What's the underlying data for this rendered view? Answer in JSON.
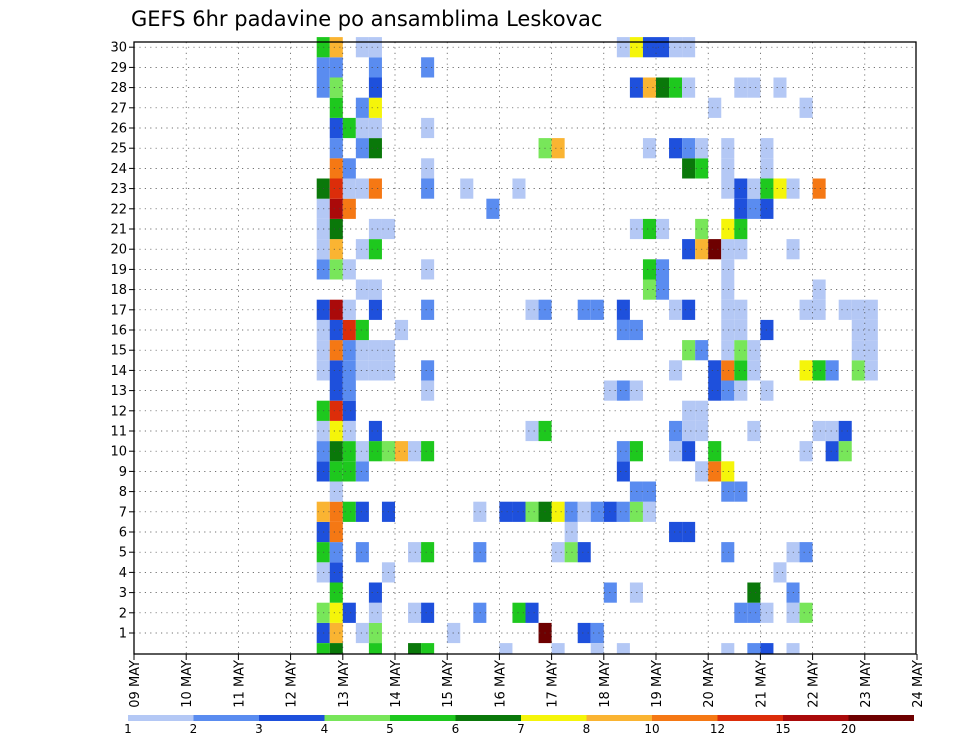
{
  "chart_data": {
    "type": "heatmap",
    "title": "GEFS 6hr padavine po ansamblima Leskovac",
    "x_ticks": [
      "09 MAY",
      "10 MAY",
      "11 MAY",
      "12 MAY",
      "13 MAY",
      "14 MAY",
      "15 MAY",
      "16 MAY",
      "17 MAY",
      "18 MAY",
      "19 MAY",
      "20 MAY",
      "21 MAY",
      "22 MAY",
      "23 MAY",
      "24 MAY"
    ],
    "y_ticks": [
      "1",
      "2",
      "3",
      "4",
      "5",
      "6",
      "7",
      "8",
      "9",
      "10",
      "11",
      "12",
      "13",
      "14",
      "15",
      "16",
      "17",
      "18",
      "19",
      "20",
      "21",
      "22",
      "23",
      "24",
      "25",
      "26",
      "27",
      "28",
      "29",
      "30"
    ],
    "xlim": [
      "09 MAY",
      "24 MAY"
    ],
    "ylim": [
      0.5,
      30.5
    ],
    "grid": true,
    "colorbar": {
      "labels": [
        "1",
        "2",
        "3",
        "4",
        "5",
        "6",
        "7",
        "8",
        "10",
        "12",
        "15",
        "20"
      ],
      "colors": [
        "#b4c8f5",
        "#5a8cf0",
        "#1e50dc",
        "#78e65a",
        "#1ec81e",
        "#0a780a",
        "#f5f50a",
        "#fab432",
        "#f57814",
        "#dc2d0a",
        "#aa0a0a",
        "#6e0000"
      ]
    },
    "cells_note": "each cell = [ensemble member, 6-hour step from 09 MAY 00Z, color class index 1-12]",
    "cells": [
      [
        1,
        14,
        3
      ],
      [
        1,
        15,
        8
      ],
      [
        1,
        17,
        1
      ],
      [
        1,
        18,
        4
      ],
      [
        1,
        24,
        1
      ],
      [
        1,
        31,
        12
      ],
      [
        1,
        34,
        3
      ],
      [
        1,
        35,
        2
      ],
      [
        2,
        14,
        4
      ],
      [
        2,
        15,
        7
      ],
      [
        2,
        16,
        3
      ],
      [
        2,
        18,
        1
      ],
      [
        2,
        21,
        1
      ],
      [
        2,
        22,
        3
      ],
      [
        2,
        26,
        2
      ],
      [
        2,
        29,
        5
      ],
      [
        2,
        30,
        3
      ],
      [
        2,
        46,
        2
      ],
      [
        2,
        47,
        2
      ],
      [
        2,
        48,
        1
      ],
      [
        2,
        50,
        1
      ],
      [
        2,
        51,
        4
      ],
      [
        3,
        15,
        5
      ],
      [
        3,
        18,
        3
      ],
      [
        3,
        36,
        2
      ],
      [
        3,
        38,
        1
      ],
      [
        3,
        47,
        6
      ],
      [
        3,
        50,
        2
      ],
      [
        4,
        14,
        1
      ],
      [
        4,
        15,
        3
      ],
      [
        4,
        19,
        1
      ],
      [
        4,
        49,
        1
      ],
      [
        5,
        14,
        5
      ],
      [
        5,
        15,
        2
      ],
      [
        5,
        17,
        2
      ],
      [
        5,
        21,
        1
      ],
      [
        5,
        22,
        5
      ],
      [
        5,
        26,
        2
      ],
      [
        5,
        32,
        1
      ],
      [
        5,
        33,
        4
      ],
      [
        5,
        34,
        3
      ],
      [
        5,
        45,
        2
      ],
      [
        5,
        50,
        1
      ],
      [
        5,
        51,
        2
      ],
      [
        6,
        14,
        3
      ],
      [
        6,
        15,
        9
      ],
      [
        6,
        33,
        1
      ],
      [
        6,
        41,
        3
      ],
      [
        6,
        42,
        3
      ],
      [
        7,
        14,
        8
      ],
      [
        7,
        15,
        9
      ],
      [
        7,
        16,
        5
      ],
      [
        7,
        17,
        3
      ],
      [
        7,
        19,
        3
      ],
      [
        7,
        26,
        1
      ],
      [
        7,
        28,
        3
      ],
      [
        7,
        29,
        3
      ],
      [
        7,
        30,
        4
      ],
      [
        7,
        31,
        6
      ],
      [
        7,
        32,
        7
      ],
      [
        7,
        33,
        2
      ],
      [
        7,
        34,
        1
      ],
      [
        7,
        35,
        2
      ],
      [
        7,
        36,
        3
      ],
      [
        7,
        37,
        2
      ],
      [
        7,
        38,
        4
      ],
      [
        7,
        39,
        1
      ],
      [
        8,
        15,
        1
      ],
      [
        8,
        38,
        2
      ],
      [
        8,
        39,
        2
      ],
      [
        8,
        45,
        2
      ],
      [
        8,
        46,
        2
      ],
      [
        9,
        14,
        3
      ],
      [
        9,
        15,
        5
      ],
      [
        9,
        16,
        5
      ],
      [
        9,
        17,
        2
      ],
      [
        9,
        37,
        3
      ],
      [
        9,
        43,
        1
      ],
      [
        9,
        44,
        9
      ],
      [
        9,
        45,
        7
      ],
      [
        10,
        14,
        2
      ],
      [
        10,
        15,
        6
      ],
      [
        10,
        16,
        5
      ],
      [
        10,
        17,
        1
      ],
      [
        10,
        18,
        5
      ],
      [
        10,
        19,
        4
      ],
      [
        10,
        20,
        8
      ],
      [
        10,
        21,
        1
      ],
      [
        10,
        22,
        5
      ],
      [
        10,
        37,
        2
      ],
      [
        10,
        38,
        5
      ],
      [
        10,
        41,
        1
      ],
      [
        10,
        42,
        3
      ],
      [
        10,
        44,
        5
      ],
      [
        10,
        51,
        1
      ],
      [
        10,
        53,
        3
      ],
      [
        10,
        54,
        4
      ],
      [
        11,
        14,
        1
      ],
      [
        11,
        15,
        7
      ],
      [
        11,
        16,
        1
      ],
      [
        11,
        18,
        3
      ],
      [
        11,
        30,
        1
      ],
      [
        11,
        31,
        5
      ],
      [
        11,
        41,
        2
      ],
      [
        11,
        42,
        1
      ],
      [
        11,
        43,
        1
      ],
      [
        11,
        47,
        1
      ],
      [
        11,
        52,
        1
      ],
      [
        11,
        53,
        1
      ],
      [
        11,
        54,
        3
      ],
      [
        12,
        14,
        5
      ],
      [
        12,
        15,
        10
      ],
      [
        12,
        16,
        3
      ],
      [
        12,
        42,
        1
      ],
      [
        12,
        43,
        1
      ],
      [
        13,
        15,
        3
      ],
      [
        13,
        16,
        2
      ],
      [
        13,
        22,
        1
      ],
      [
        13,
        36,
        1
      ],
      [
        13,
        37,
        2
      ],
      [
        13,
        38,
        1
      ],
      [
        13,
        44,
        3
      ],
      [
        13,
        45,
        2
      ],
      [
        13,
        46,
        1
      ],
      [
        13,
        48,
        1
      ],
      [
        14,
        14,
        1
      ],
      [
        14,
        15,
        3
      ],
      [
        14,
        16,
        2
      ],
      [
        14,
        17,
        1
      ],
      [
        14,
        18,
        1
      ],
      [
        14,
        19,
        1
      ],
      [
        14,
        22,
        2
      ],
      [
        14,
        41,
        1
      ],
      [
        14,
        44,
        3
      ],
      [
        14,
        45,
        9
      ],
      [
        14,
        46,
        5
      ],
      [
        14,
        47,
        1
      ],
      [
        14,
        51,
        7
      ],
      [
        14,
        52,
        5
      ],
      [
        14,
        53,
        2
      ],
      [
        14,
        55,
        4
      ],
      [
        14,
        56,
        1
      ],
      [
        15,
        14,
        1
      ],
      [
        15,
        15,
        9
      ],
      [
        15,
        16,
        2
      ],
      [
        15,
        17,
        1
      ],
      [
        15,
        18,
        1
      ],
      [
        15,
        19,
        1
      ],
      [
        15,
        42,
        4
      ],
      [
        15,
        43,
        2
      ],
      [
        15,
        45,
        1
      ],
      [
        15,
        46,
        4
      ],
      [
        15,
        47,
        1
      ],
      [
        15,
        55,
        1
      ],
      [
        15,
        56,
        1
      ],
      [
        16,
        14,
        1
      ],
      [
        16,
        15,
        3
      ],
      [
        16,
        16,
        10
      ],
      [
        16,
        17,
        5
      ],
      [
        16,
        20,
        1
      ],
      [
        16,
        37,
        2
      ],
      [
        16,
        38,
        2
      ],
      [
        16,
        45,
        1
      ],
      [
        16,
        46,
        1
      ],
      [
        16,
        48,
        3
      ],
      [
        16,
        55,
        1
      ],
      [
        16,
        56,
        1
      ],
      [
        17,
        14,
        3
      ],
      [
        17,
        15,
        11
      ],
      [
        17,
        16,
        1
      ],
      [
        17,
        18,
        3
      ],
      [
        17,
        22,
        2
      ],
      [
        17,
        30,
        1
      ],
      [
        17,
        31,
        2
      ],
      [
        17,
        34,
        2
      ],
      [
        17,
        35,
        2
      ],
      [
        17,
        37,
        3
      ],
      [
        17,
        41,
        1
      ],
      [
        17,
        42,
        3
      ],
      [
        17,
        45,
        1
      ],
      [
        17,
        46,
        1
      ],
      [
        17,
        51,
        1
      ],
      [
        17,
        52,
        1
      ],
      [
        17,
        54,
        1
      ],
      [
        17,
        55,
        1
      ],
      [
        17,
        56,
        1
      ],
      [
        18,
        17,
        1
      ],
      [
        18,
        18,
        1
      ],
      [
        18,
        39,
        4
      ],
      [
        18,
        40,
        2
      ],
      [
        18,
        45,
        1
      ],
      [
        18,
        52,
        1
      ],
      [
        19,
        14,
        2
      ],
      [
        19,
        15,
        4
      ],
      [
        19,
        16,
        1
      ],
      [
        19,
        22,
        1
      ],
      [
        19,
        39,
        5
      ],
      [
        19,
        40,
        2
      ],
      [
        19,
        45,
        1
      ],
      [
        20,
        14,
        1
      ],
      [
        20,
        15,
        8
      ],
      [
        20,
        17,
        1
      ],
      [
        20,
        18,
        5
      ],
      [
        20,
        42,
        3
      ],
      [
        20,
        43,
        8
      ],
      [
        20,
        44,
        12
      ],
      [
        20,
        45,
        1
      ],
      [
        20,
        46,
        1
      ],
      [
        20,
        50,
        1
      ],
      [
        21,
        14,
        1
      ],
      [
        21,
        15,
        6
      ],
      [
        21,
        18,
        1
      ],
      [
        21,
        19,
        1
      ],
      [
        21,
        38,
        1
      ],
      [
        21,
        39,
        5
      ],
      [
        21,
        40,
        1
      ],
      [
        21,
        43,
        4
      ],
      [
        21,
        45,
        7
      ],
      [
        21,
        46,
        5
      ],
      [
        22,
        14,
        1
      ],
      [
        22,
        15,
        11
      ],
      [
        22,
        16,
        9
      ],
      [
        22,
        27,
        2
      ],
      [
        22,
        46,
        3
      ],
      [
        22,
        47,
        2
      ],
      [
        22,
        48,
        3
      ],
      [
        23,
        14,
        6
      ],
      [
        23,
        15,
        10
      ],
      [
        23,
        16,
        1
      ],
      [
        23,
        17,
        1
      ],
      [
        23,
        18,
        9
      ],
      [
        23,
        22,
        2
      ],
      [
        23,
        25,
        1
      ],
      [
        23,
        29,
        1
      ],
      [
        23,
        45,
        1
      ],
      [
        23,
        46,
        3
      ],
      [
        23,
        47,
        1
      ],
      [
        23,
        48,
        5
      ],
      [
        23,
        49,
        7
      ],
      [
        23,
        50,
        1
      ],
      [
        23,
        52,
        9
      ],
      [
        24,
        15,
        9
      ],
      [
        24,
        16,
        2
      ],
      [
        24,
        22,
        1
      ],
      [
        24,
        42,
        6
      ],
      [
        24,
        43,
        5
      ],
      [
        24,
        45,
        1
      ],
      [
        24,
        48,
        1
      ],
      [
        25,
        15,
        2
      ],
      [
        25,
        17,
        2
      ],
      [
        25,
        18,
        6
      ],
      [
        25,
        31,
        4
      ],
      [
        25,
        32,
        8
      ],
      [
        25,
        39,
        1
      ],
      [
        25,
        41,
        3
      ],
      [
        25,
        42,
        2
      ],
      [
        25,
        43,
        1
      ],
      [
        25,
        45,
        1
      ],
      [
        25,
        48,
        1
      ],
      [
        26,
        15,
        3
      ],
      [
        26,
        16,
        5
      ],
      [
        26,
        17,
        1
      ],
      [
        26,
        18,
        1
      ],
      [
        26,
        22,
        1
      ],
      [
        27,
        15,
        5
      ],
      [
        27,
        17,
        2
      ],
      [
        27,
        18,
        7
      ],
      [
        27,
        44,
        1
      ],
      [
        27,
        51,
        1
      ],
      [
        28,
        14,
        2
      ],
      [
        28,
        15,
        4
      ],
      [
        28,
        18,
        3
      ],
      [
        28,
        38,
        3
      ],
      [
        28,
        39,
        8
      ],
      [
        28,
        40,
        6
      ],
      [
        28,
        41,
        5
      ],
      [
        28,
        42,
        1
      ],
      [
        28,
        46,
        1
      ],
      [
        28,
        47,
        1
      ],
      [
        28,
        49,
        1
      ],
      [
        29,
        14,
        2
      ],
      [
        29,
        15,
        2
      ],
      [
        29,
        18,
        2
      ],
      [
        29,
        22,
        2
      ],
      [
        30,
        14,
        5
      ],
      [
        30,
        15,
        8
      ],
      [
        30,
        17,
        1
      ],
      [
        30,
        18,
        1
      ],
      [
        30,
        37,
        1
      ],
      [
        30,
        38,
        7
      ],
      [
        30,
        39,
        3
      ],
      [
        30,
        40,
        3
      ],
      [
        30,
        41,
        1
      ],
      [
        30,
        42,
        1
      ]
    ],
    "bottom_row_note": "partial colored strip beneath member 1 (below the lowest gridline)",
    "bottom_row": [
      [
        14,
        5
      ],
      [
        15,
        6
      ],
      [
        18,
        5
      ],
      [
        21,
        6
      ],
      [
        22,
        5
      ],
      [
        28,
        1
      ],
      [
        32,
        1
      ],
      [
        35,
        1
      ],
      [
        37,
        1
      ],
      [
        45,
        1
      ],
      [
        47,
        2
      ],
      [
        48,
        3
      ],
      [
        50,
        1
      ]
    ]
  }
}
